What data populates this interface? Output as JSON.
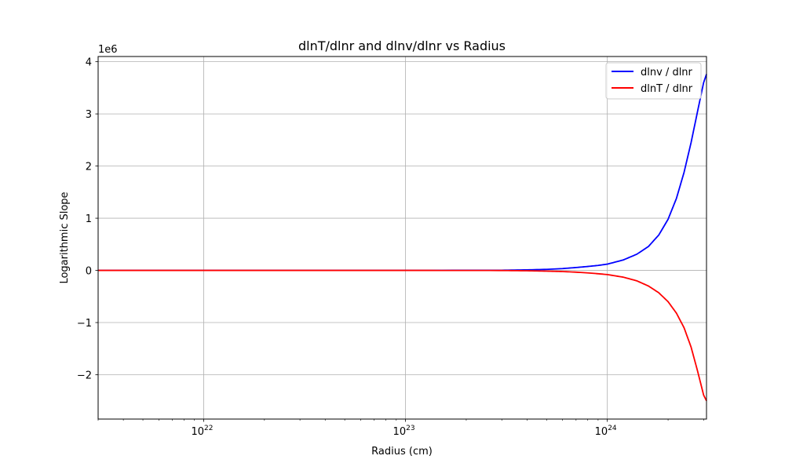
{
  "chart_data": {
    "type": "line",
    "title": "dlnT/dlnr and dlnv/dlnr vs Radius",
    "xlabel": "Radius (cm)",
    "ylabel": "Logarithmic Slope",
    "xscale": "log",
    "xlim": [
      3e+21,
      3.1e+24
    ],
    "ylim": [
      -2850000.0,
      4100000.0
    ],
    "y_offset_label": "1e6",
    "x_major_ticks": [
      {
        "value": 1e+22,
        "base": "10",
        "exp": "22"
      },
      {
        "value": 1e+23,
        "base": "10",
        "exp": "23"
      },
      {
        "value": 1e+24,
        "base": "10",
        "exp": "24"
      }
    ],
    "y_ticks": [
      {
        "value": -2000000,
        "label": "−2"
      },
      {
        "value": -1000000,
        "label": "−1"
      },
      {
        "value": 0,
        "label": "0"
      },
      {
        "value": 1000000,
        "label": "1"
      },
      {
        "value": 2000000,
        "label": "2"
      },
      {
        "value": 3000000,
        "label": "3"
      },
      {
        "value": 4000000,
        "label": "4"
      }
    ],
    "grid": true,
    "legend_position": "top-right",
    "series": [
      {
        "name": "dlnv / dlnr",
        "color": "#0000ff",
        "x": [
          3e+21,
          1e+22,
          1e+23,
          3e+23,
          4e+23,
          5e+23,
          6e+23,
          7e+23,
          8e+23,
          9e+23,
          1e+24,
          1.2e+24,
          1.4e+24,
          1.6e+24,
          1.8e+24,
          2e+24,
          2.2e+24,
          2.4e+24,
          2.6e+24,
          2.8e+24,
          3e+24,
          3.1e+24
        ],
        "y": [
          0,
          0,
          0,
          3000,
          10000,
          20000,
          35000,
          55000,
          75000,
          95000,
          120000,
          200000,
          310000,
          460000,
          680000,
          980000,
          1380000,
          1880000,
          2450000,
          3050000,
          3600000,
          3760000
        ]
      },
      {
        "name": "dlnT / dlnr",
        "color": "#ff0000",
        "x": [
          3e+21,
          1e+22,
          1e+23,
          3e+23,
          4e+23,
          5e+23,
          6e+23,
          7e+23,
          8e+23,
          9e+23,
          1e+24,
          1.2e+24,
          1.4e+24,
          1.6e+24,
          1.8e+24,
          2e+24,
          2.2e+24,
          2.4e+24,
          2.6e+24,
          2.8e+24,
          3e+24,
          3.1e+24
        ],
        "y": [
          0,
          0,
          0,
          -2000,
          -7000,
          -14000,
          -22000,
          -34000,
          -48000,
          -64000,
          -80000,
          -130000,
          -200000,
          -300000,
          -430000,
          -600000,
          -820000,
          -1100000,
          -1470000,
          -1930000,
          -2390000,
          -2500000
        ]
      }
    ]
  }
}
